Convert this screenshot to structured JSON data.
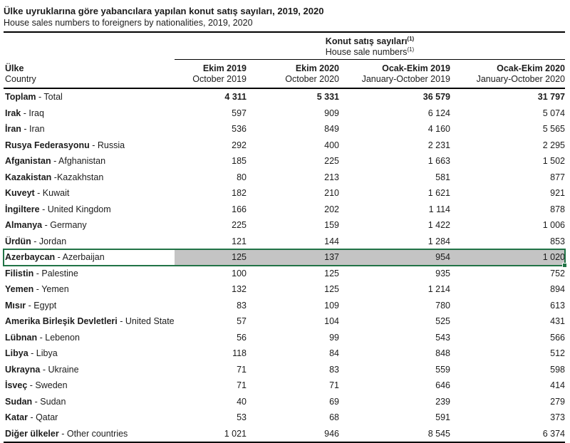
{
  "title": {
    "tr": "Ülke uyruklarına göre yabancılara yapılan konut satış sayıları, 2019, 2020",
    "en": "House sales numbers to foreigners by nationalities, 2019, 2020"
  },
  "table": {
    "group_header": {
      "tr": "Konut satış sayıları",
      "en": "House sale numbers",
      "footnote_marker": "(1)"
    },
    "country_col": {
      "tr": "Ülke",
      "en": "Country"
    },
    "columns": [
      {
        "tr": "Ekim 2019",
        "en": "October 2019"
      },
      {
        "tr": "Ekim 2020",
        "en": "October 2020"
      },
      {
        "tr": "Ocak-Ekim 2019",
        "en": "January-October 2019"
      },
      {
        "tr": "Ocak-Ekim 2020",
        "en": "January-October 2020"
      }
    ],
    "selection_colors": {
      "border": "#217346",
      "fill": "#c4c4c4"
    },
    "rows": [
      {
        "tr": "Toplam",
        "sep": " - ",
        "en": "Total",
        "values": [
          "4 311",
          "5 331",
          "36 579",
          "31 797"
        ],
        "bold_values": true
      },
      {
        "tr": "Irak",
        "sep": " - ",
        "en": "Iraq",
        "values": [
          "597",
          "909",
          "6 124",
          "5 074"
        ]
      },
      {
        "tr": "İran",
        "sep": " - ",
        "en": "Iran",
        "values": [
          "536",
          "849",
          "4 160",
          "5 565"
        ]
      },
      {
        "tr": "Rusya Federasyonu",
        "sep": " - ",
        "en": "Russia",
        "values": [
          "292",
          "400",
          "2 231",
          "2 295"
        ]
      },
      {
        "tr": "Afganistan",
        "sep": " - ",
        "en": "Afghanistan",
        "values": [
          "185",
          "225",
          "1 663",
          "1 502"
        ]
      },
      {
        "tr": "Kazakistan",
        "sep": " -",
        "en": "Kazakhstan",
        "values": [
          "80",
          "213",
          "581",
          "877"
        ]
      },
      {
        "tr": "Kuveyt",
        "sep": " - ",
        "en": "Kuwait",
        "values": [
          "182",
          "210",
          "1 621",
          "921"
        ]
      },
      {
        "tr": "İngiltere",
        "sep": " - ",
        "en": "United Kingdom",
        "values": [
          "166",
          "202",
          "1 114",
          "878"
        ]
      },
      {
        "tr": "Almanya",
        "sep": " - ",
        "en": "Germany",
        "values": [
          "225",
          "159",
          "1 422",
          "1 006"
        ]
      },
      {
        "tr": "Ürdün",
        "sep": " - ",
        "en": "Jordan",
        "values": [
          "121",
          "144",
          "1 284",
          "853"
        ]
      },
      {
        "tr": "Azerbaycan",
        "sep": " - ",
        "en": "Azerbaijan",
        "values": [
          "125",
          "137",
          "954",
          "1 020"
        ],
        "selected": true
      },
      {
        "tr": "Filistin",
        "sep": " - ",
        "en": "Palestine",
        "values": [
          "100",
          "125",
          "935",
          "752"
        ]
      },
      {
        "tr": "Yemen",
        "sep": " - ",
        "en": "Yemen",
        "values": [
          "132",
          "125",
          "1 214",
          "894"
        ]
      },
      {
        "tr": "Mısır",
        "sep": " - ",
        "en": "Egypt",
        "values": [
          "83",
          "109",
          "780",
          "613"
        ]
      },
      {
        "tr": "Amerika Birleşik Devletleri",
        "sep": " - ",
        "en": "United States",
        "values": [
          "57",
          "104",
          "525",
          "431"
        ]
      },
      {
        "tr": "Lübnan",
        "sep": " - ",
        "en": "Lebenon",
        "values": [
          "56",
          "99",
          "543",
          "566"
        ]
      },
      {
        "tr": "Libya",
        "sep": " - ",
        "en": "Libya",
        "values": [
          "118",
          "84",
          "848",
          "512"
        ]
      },
      {
        "tr": "Ukrayna",
        "sep": " - ",
        "en": "Ukraine",
        "values": [
          "71",
          "83",
          "559",
          "598"
        ]
      },
      {
        "tr": "İsveç",
        "sep": " - ",
        "en": "Sweden",
        "values": [
          "71",
          "71",
          "646",
          "414"
        ]
      },
      {
        "tr": "Sudan",
        "sep": " - ",
        "en": "Sudan",
        "values": [
          "40",
          "69",
          "239",
          "279"
        ]
      },
      {
        "tr": "Katar",
        "sep": " - ",
        "en": "Qatar",
        "values": [
          "53",
          "68",
          "591",
          "373"
        ]
      },
      {
        "tr": "Diğer ülkeler",
        "sep": " - ",
        "en": "Other countries",
        "values": [
          "1 021",
          "946",
          "8 545",
          "6 374"
        ]
      }
    ]
  }
}
